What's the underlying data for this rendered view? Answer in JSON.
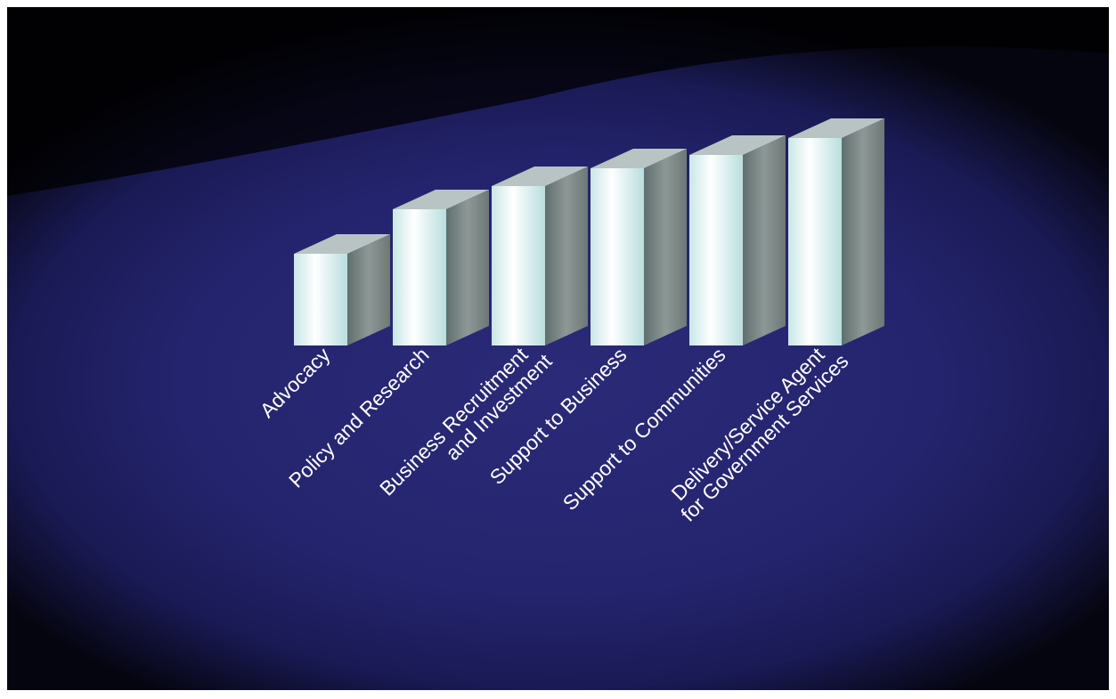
{
  "chart_data": {
    "type": "bar3d",
    "categories": [
      [
        "Advocacy"
      ],
      [
        "Policy and Research"
      ],
      [
        "Business Recruitment",
        "and Investment"
      ],
      [
        "Support to Business"
      ],
      [
        "Support to Communities"
      ],
      [
        "Delivery/Service Agent",
        "for Government Services"
      ]
    ],
    "values": [
      103,
      153,
      179,
      199,
      214,
      233
    ],
    "ylim": [
      0,
      250
    ]
  }
}
